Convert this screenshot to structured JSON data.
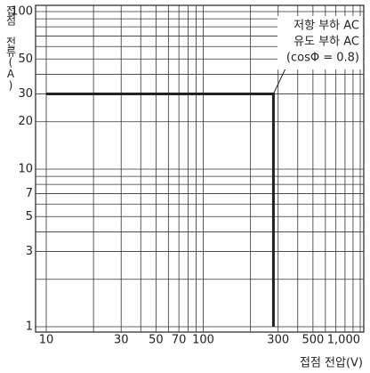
{
  "chart_data": {
    "type": "line",
    "xlabel": "접점 전압(V)",
    "ylabel": "접점 전류(A)",
    "log_x": true,
    "log_y": true,
    "grid": true,
    "xlim": [
      10,
      1000
    ],
    "ylim": [
      1,
      100
    ],
    "xticks": [
      10,
      30,
      50,
      70,
      100,
      300,
      500,
      {
        "value": 1000,
        "label": "1,000"
      }
    ],
    "yticks": [
      1,
      3,
      5,
      7,
      10,
      20,
      30,
      50,
      100
    ],
    "xgrid": [
      10,
      20,
      30,
      40,
      50,
      60,
      70,
      80,
      90,
      100,
      200,
      300,
      400,
      500,
      600,
      700,
      800,
      900,
      1000
    ],
    "ygrid": [
      1,
      2,
      3,
      4,
      5,
      6,
      7,
      8,
      9,
      10,
      20,
      30,
      40,
      50,
      60,
      70,
      80,
      90,
      100
    ],
    "x": [
      10,
      280,
      280
    ],
    "series": [
      {
        "color": "#222222",
        "values": [
          30,
          30,
          1
        ]
      }
    ],
    "annotation": [
      "저항 부하 AC",
      "유도 부하 AC",
      "(cosΦ = 0.8)"
    ]
  }
}
